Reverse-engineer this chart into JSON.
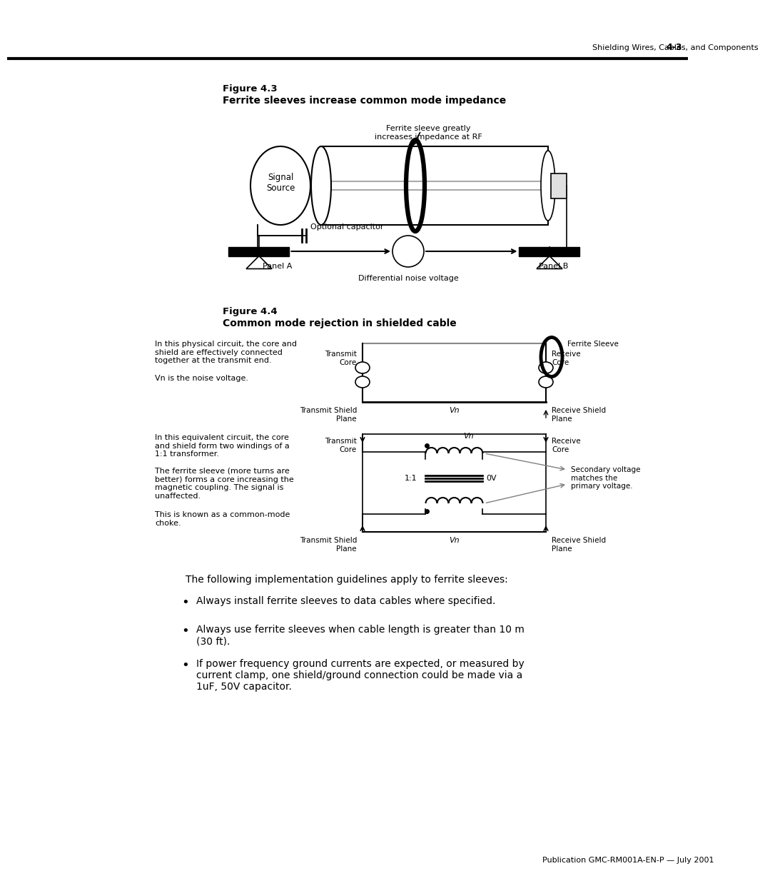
{
  "page_header_text": "Shielding Wires, Cables, and Components",
  "page_header_num": "4-3",
  "page_footer_text": "Publication GMC-RM001A-EN-P — July 2001",
  "fig43_title1": "Figure 4.3",
  "fig43_title2": "Ferrite sleeves increase common mode impedance",
  "fig44_title1": "Figure 4.4",
  "fig44_title2": "Common mode rejection in shielded cable",
  "fig44_desc1": "In this physical circuit, the core and\nshield are effectively connected\ntogether at the transmit end.",
  "fig44_desc2": "Vn is the noise voltage.",
  "fig44_desc3": "In this equivalent circuit, the core\nand shield form two windings of a\n1:1 transformer.",
  "fig44_desc4": "The ferrite sleeve (more turns are\nbetter) forms a core increasing the\nmagnetic coupling. The signal is\nunaffected.",
  "fig44_desc5": "This is known as a common-mode\nchoke.",
  "bullet_intro": "The following implementation guidelines apply to ferrite sleeves:",
  "bullet1": "Always install ferrite sleeves to data cables where specified.",
  "bullet2": "Always use ferrite sleeves when cable length is greater than 10 m\n(30 ft).",
  "bullet3": "If power frequency ground currents are expected, or measured by\ncurrent clamp, one shield/ground connection could be made via a\n1uF, 50V capacitor.",
  "bg_color": "#ffffff",
  "text_color": "#000000"
}
